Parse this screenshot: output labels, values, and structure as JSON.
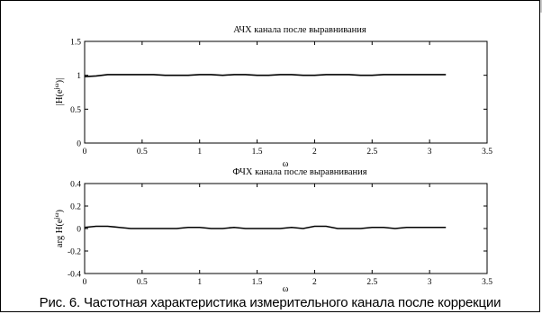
{
  "caption": "Рис. 6. Частотная характеристика измерительного канала после коррекции",
  "chart_data": [
    {
      "type": "line",
      "title": "АЧХ канала после выравнивания",
      "xlabel": "ω",
      "ylabel": "|H(e^{jω})|",
      "xlim": [
        0,
        3.5
      ],
      "ylim": [
        0,
        1.5
      ],
      "xticks": [
        "0",
        "0.5",
        "1",
        "1.5",
        "2",
        "2.5",
        "3",
        "3.5"
      ],
      "yticks": [
        "0",
        "0.5",
        "1",
        "1.5"
      ],
      "grid": false,
      "series": [
        {
          "color": "#000000",
          "x": [
            0,
            0.1,
            0.2,
            0.3,
            0.4,
            0.5,
            0.6,
            0.7,
            0.8,
            0.9,
            1.0,
            1.1,
            1.2,
            1.3,
            1.4,
            1.5,
            1.6,
            1.7,
            1.8,
            1.9,
            2.0,
            2.1,
            2.2,
            2.3,
            2.4,
            2.5,
            2.6,
            2.7,
            2.8,
            2.9,
            3.0,
            3.1416
          ],
          "y": [
            0.98,
            0.99,
            1.01,
            1.01,
            1.01,
            1.01,
            1.01,
            1.0,
            1.0,
            1.0,
            1.01,
            1.01,
            1.0,
            1.01,
            1.01,
            1.0,
            1.0,
            1.01,
            1.01,
            1.0,
            1.0,
            1.01,
            1.01,
            1.01,
            1.0,
            1.0,
            1.01,
            1.01,
            1.01,
            1.01,
            1.01,
            1.01
          ]
        }
      ]
    },
    {
      "type": "line",
      "title": "ФЧХ канала после выравнивания",
      "xlabel": "ω",
      "ylabel": "arg H(e^{jω})",
      "xlim": [
        0,
        3.5
      ],
      "ylim": [
        -0.4,
        0.4
      ],
      "xticks": [
        "0",
        "0.5",
        "1",
        "1.5",
        "2",
        "2.5",
        "3",
        "3.5"
      ],
      "yticks": [
        "-0.4",
        "-0.2",
        "0",
        "0.2",
        "0.4"
      ],
      "grid": false,
      "series": [
        {
          "color": "#000000",
          "x": [
            0,
            0.1,
            0.2,
            0.3,
            0.4,
            0.5,
            0.6,
            0.7,
            0.8,
            0.9,
            1.0,
            1.1,
            1.2,
            1.3,
            1.4,
            1.5,
            1.6,
            1.7,
            1.8,
            1.9,
            2.0,
            2.1,
            2.2,
            2.3,
            2.4,
            2.5,
            2.6,
            2.7,
            2.8,
            2.9,
            3.0,
            3.1416
          ],
          "y": [
            0.01,
            0.02,
            0.02,
            0.01,
            0.0,
            0.0,
            0.0,
            0.0,
            0.0,
            0.01,
            0.01,
            0.0,
            0.0,
            0.01,
            0.0,
            0.0,
            0.0,
            0.0,
            0.01,
            0.0,
            0.02,
            0.02,
            0.0,
            0.0,
            0.0,
            0.01,
            0.01,
            0.0,
            0.01,
            0.01,
            0.01,
            0.01
          ]
        }
      ]
    }
  ]
}
